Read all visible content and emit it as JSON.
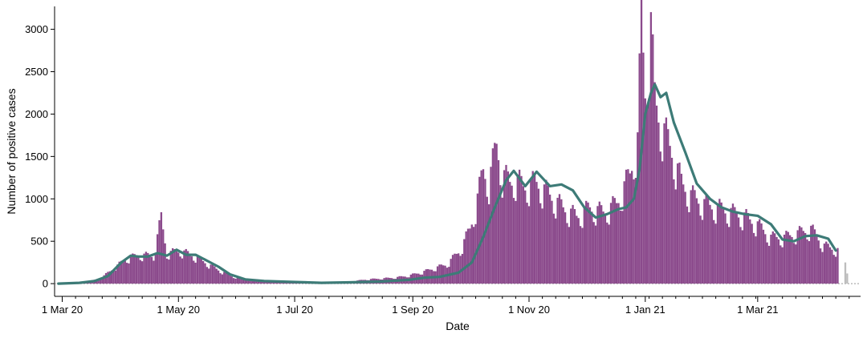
{
  "chart_data": {
    "type": "bar",
    "title": "",
    "xlabel": "Date",
    "ylabel": "Number of positive cases",
    "ylim": [
      -150,
      3270
    ],
    "xlim": [
      "2020-02-26",
      "2021-04-24"
    ],
    "y_ticks": [
      0,
      500,
      1000,
      1500,
      2000,
      2500,
      3000
    ],
    "x_ticks": [
      {
        "date": "2020-03-01",
        "label": "1 Mar 20"
      },
      {
        "date": "2020-05-01",
        "label": "1 May 20"
      },
      {
        "date": "2020-07-01",
        "label": "1 Jul 20"
      },
      {
        "date": "2020-09-01",
        "label": "1 Sep 20"
      },
      {
        "date": "2020-11-01",
        "label": "1 Nov 20"
      },
      {
        "date": "2021-01-01",
        "label": "1 Jan 21"
      },
      {
        "date": "2021-03-01",
        "label": "1 Mar 21"
      }
    ],
    "grid": false,
    "legend": "none",
    "colors": {
      "bars": "#8b4a8c",
      "incomplete_bars": "#bdbdbd",
      "trend_line": "#3d7b77",
      "zero_line": "#999999"
    },
    "series": [
      {
        "kind": "daily-bars",
        "x": [
          "2020-02-29",
          "2020-03-07",
          "2020-03-14",
          "2020-03-21",
          "2020-03-28",
          "2020-04-04",
          "2020-04-11",
          "2020-04-18",
          "2020-04-22",
          "2020-04-25",
          "2020-05-02",
          "2020-05-09",
          "2020-05-16",
          "2020-05-23",
          "2020-05-30",
          "2020-06-06",
          "2020-06-13",
          "2020-06-20",
          "2020-06-27",
          "2020-07-04",
          "2020-07-11",
          "2020-07-18",
          "2020-07-25",
          "2020-08-01",
          "2020-08-08",
          "2020-08-15",
          "2020-08-22",
          "2020-08-29",
          "2020-09-05",
          "2020-09-12",
          "2020-09-19",
          "2020-09-26",
          "2020-10-01",
          "2020-10-04",
          "2020-10-08",
          "2020-10-11",
          "2020-10-15",
          "2020-10-18",
          "2020-10-22",
          "2020-10-25",
          "2020-10-29",
          "2020-11-05",
          "2020-11-12",
          "2020-11-19",
          "2020-11-26",
          "2020-12-03",
          "2020-12-10",
          "2020-12-17",
          "2020-12-24",
          "2020-12-28",
          "2020-12-30",
          "2021-01-01",
          "2021-01-04",
          "2021-01-06",
          "2021-01-09",
          "2021-01-12",
          "2021-01-16",
          "2021-01-20",
          "2021-01-25",
          "2021-02-01",
          "2021-02-08",
          "2021-02-15",
          "2021-02-22",
          "2021-03-01",
          "2021-03-08",
          "2021-03-15",
          "2021-03-22",
          "2021-03-29",
          "2021-04-05",
          "2021-04-12"
        ],
        "y": [
          5,
          10,
          20,
          60,
          180,
          300,
          340,
          330,
          780,
          360,
          390,
          330,
          240,
          150,
          80,
          45,
          35,
          28,
          20,
          18,
          14,
          16,
          22,
          30,
          50,
          60,
          70,
          90,
          130,
          180,
          230,
          400,
          650,
          900,
          1350,
          1200,
          1650,
          1300,
          1200,
          1250,
          1150,
          1200,
          1050,
          900,
          800,
          900,
          850,
          950,
          1300,
          1700,
          3150,
          2300,
          3050,
          2200,
          1900,
          1750,
          1500,
          1200,
          1050,
          950,
          900,
          850,
          800,
          700,
          550,
          550,
          600,
          650,
          450,
          400
        ]
      },
      {
        "kind": "incomplete-bars",
        "x": [
          "2021-04-16",
          "2021-04-17"
        ],
        "y": [
          250,
          120
        ]
      },
      {
        "kind": "trend-line",
        "x": [
          "2020-02-28",
          "2020-03-10",
          "2020-03-18",
          "2020-03-25",
          "2020-04-01",
          "2020-04-06",
          "2020-04-10",
          "2020-04-15",
          "2020-04-20",
          "2020-04-25",
          "2020-04-30",
          "2020-05-05",
          "2020-05-10",
          "2020-05-16",
          "2020-05-22",
          "2020-05-28",
          "2020-06-05",
          "2020-06-15",
          "2020-06-30",
          "2020-07-15",
          "2020-07-30",
          "2020-08-15",
          "2020-08-30",
          "2020-09-07",
          "2020-09-15",
          "2020-09-25",
          "2020-10-02",
          "2020-10-08",
          "2020-10-14",
          "2020-10-20",
          "2020-10-24",
          "2020-10-30",
          "2020-11-05",
          "2020-11-12",
          "2020-11-18",
          "2020-11-24",
          "2020-11-30",
          "2020-12-06",
          "2020-12-12",
          "2020-12-18",
          "2020-12-22",
          "2020-12-26",
          "2020-12-29",
          "2021-01-01",
          "2021-01-04",
          "2021-01-06",
          "2021-01-09",
          "2021-01-12",
          "2021-01-16",
          "2021-01-22",
          "2021-01-28",
          "2021-02-04",
          "2021-02-10",
          "2021-02-16",
          "2021-02-22",
          "2021-03-01",
          "2021-03-08",
          "2021-03-14",
          "2021-03-20",
          "2021-03-26",
          "2021-04-01",
          "2021-04-07",
          "2021-04-11"
        ],
        "y": [
          0,
          10,
          30,
          90,
          250,
          330,
          320,
          320,
          360,
          330,
          400,
          340,
          340,
          270,
          200,
          110,
          50,
          30,
          20,
          10,
          15,
          25,
          45,
          70,
          80,
          130,
          250,
          550,
          900,
          1220,
          1330,
          1150,
          1320,
          1150,
          1170,
          1100,
          900,
          780,
          820,
          880,
          900,
          1000,
          1350,
          2000,
          2250,
          2350,
          2200,
          2250,
          1900,
          1550,
          1180,
          1000,
          900,
          850,
          820,
          800,
          700,
          520,
          500,
          560,
          570,
          530,
          390
        ]
      }
    ]
  }
}
